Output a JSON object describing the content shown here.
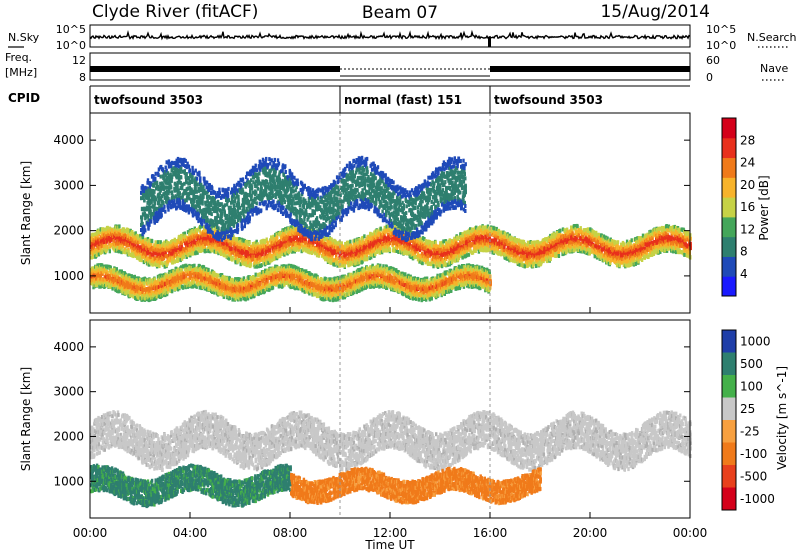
{
  "header": {
    "station": "Clyde River (fitACF)",
    "beam": "Beam 07",
    "date": "15/Aug/2014"
  },
  "status_panels": {
    "nsky_label": "N.Sky",
    "nsearch_label": "N.Search",
    "freq_label_line1": "Freq.",
    "freq_label_line2": "[MHz]",
    "nave_label": "Nave",
    "cpid_label": "CPID",
    "noise_ticks": [
      "10^5",
      "10^0"
    ],
    "noise_ticks_right": [
      "10^5",
      "10^0"
    ],
    "freq_ticks": [
      "12",
      "8"
    ],
    "nave_ticks": [
      "60",
      "0"
    ]
  },
  "cpid_segments": [
    {
      "label": "twofsound 3503",
      "start_hour": 0,
      "end_hour": 10
    },
    {
      "label": "normal (fast) 151",
      "start_hour": 10,
      "end_hour": 16
    },
    {
      "label": "twofsound 3503",
      "start_hour": 16,
      "end_hour": 24
    }
  ],
  "chart_data": [
    {
      "type": "heatmap",
      "name": "power",
      "xlabel": "Time UT",
      "ylabel": "Slant Range [km]",
      "xlim": [
        0,
        24
      ],
      "ylim": [
        180,
        4600
      ],
      "x_ticks": [
        "00:00",
        "04:00",
        "08:00",
        "12:00",
        "16:00",
        "20:00",
        "00:00"
      ],
      "y_ticks": [
        1000,
        2000,
        3000,
        4000
      ],
      "colorbar": {
        "label": "Power [dB]",
        "range": [
          0,
          32
        ],
        "ticks": [
          4,
          8,
          12,
          16,
          20,
          24,
          28
        ],
        "colors": [
          "#1a1aff",
          "#1f4ab8",
          "#2e7f6f",
          "#44a65a",
          "#c6d246",
          "#f7b32b",
          "#f07a1a",
          "#e8301c",
          "#d4001a"
        ]
      },
      "bands": [
        {
          "label": "main echo band",
          "x_range": [
            0,
            24
          ],
          "y_center_km": 1650,
          "width_km": 350,
          "power_db": 26
        },
        {
          "label": "lower echo band",
          "x_range": [
            0,
            16
          ],
          "y_center_km": 850,
          "width_km": 300,
          "power_db": 24
        },
        {
          "label": "upper sparse echoes",
          "x_range": [
            2,
            15
          ],
          "y_center_km": 2700,
          "width_km": 700,
          "power_db": 10
        }
      ]
    },
    {
      "type": "heatmap",
      "name": "velocity",
      "xlabel": "Time UT",
      "ylabel": "Slant Range [km]",
      "xlim": [
        0,
        24
      ],
      "ylim": [
        180,
        4600
      ],
      "x_ticks": [
        "00:00",
        "04:00",
        "08:00",
        "12:00",
        "16:00",
        "20:00",
        "00:00"
      ],
      "y_ticks": [
        1000,
        2000,
        3000,
        4000
      ],
      "colorbar": {
        "label": "Velocity [m s^-1]",
        "ticks": [
          "1000",
          "500",
          "100",
          "25",
          "-25",
          "-100",
          "-500",
          "-1000"
        ],
        "colors": [
          "#1f3ea8",
          "#2e7f6f",
          "#44b04a",
          "#c8c8c8",
          "#f7a040",
          "#f07a1a",
          "#e8401c",
          "#d4001a"
        ]
      },
      "bands": [
        {
          "label": "ground scatter band",
          "x_range": [
            0,
            24
          ],
          "y_center_km": 1900,
          "width_km": 500,
          "velocity": 0
        },
        {
          "label": "positive velocity band",
          "x_range": [
            0,
            8
          ],
          "y_center_km": 900,
          "width_km": 350,
          "velocity": 400
        },
        {
          "label": "negative velocity band",
          "x_range": [
            8,
            18
          ],
          "y_center_km": 900,
          "width_km": 300,
          "velocity": -400
        }
      ]
    }
  ]
}
